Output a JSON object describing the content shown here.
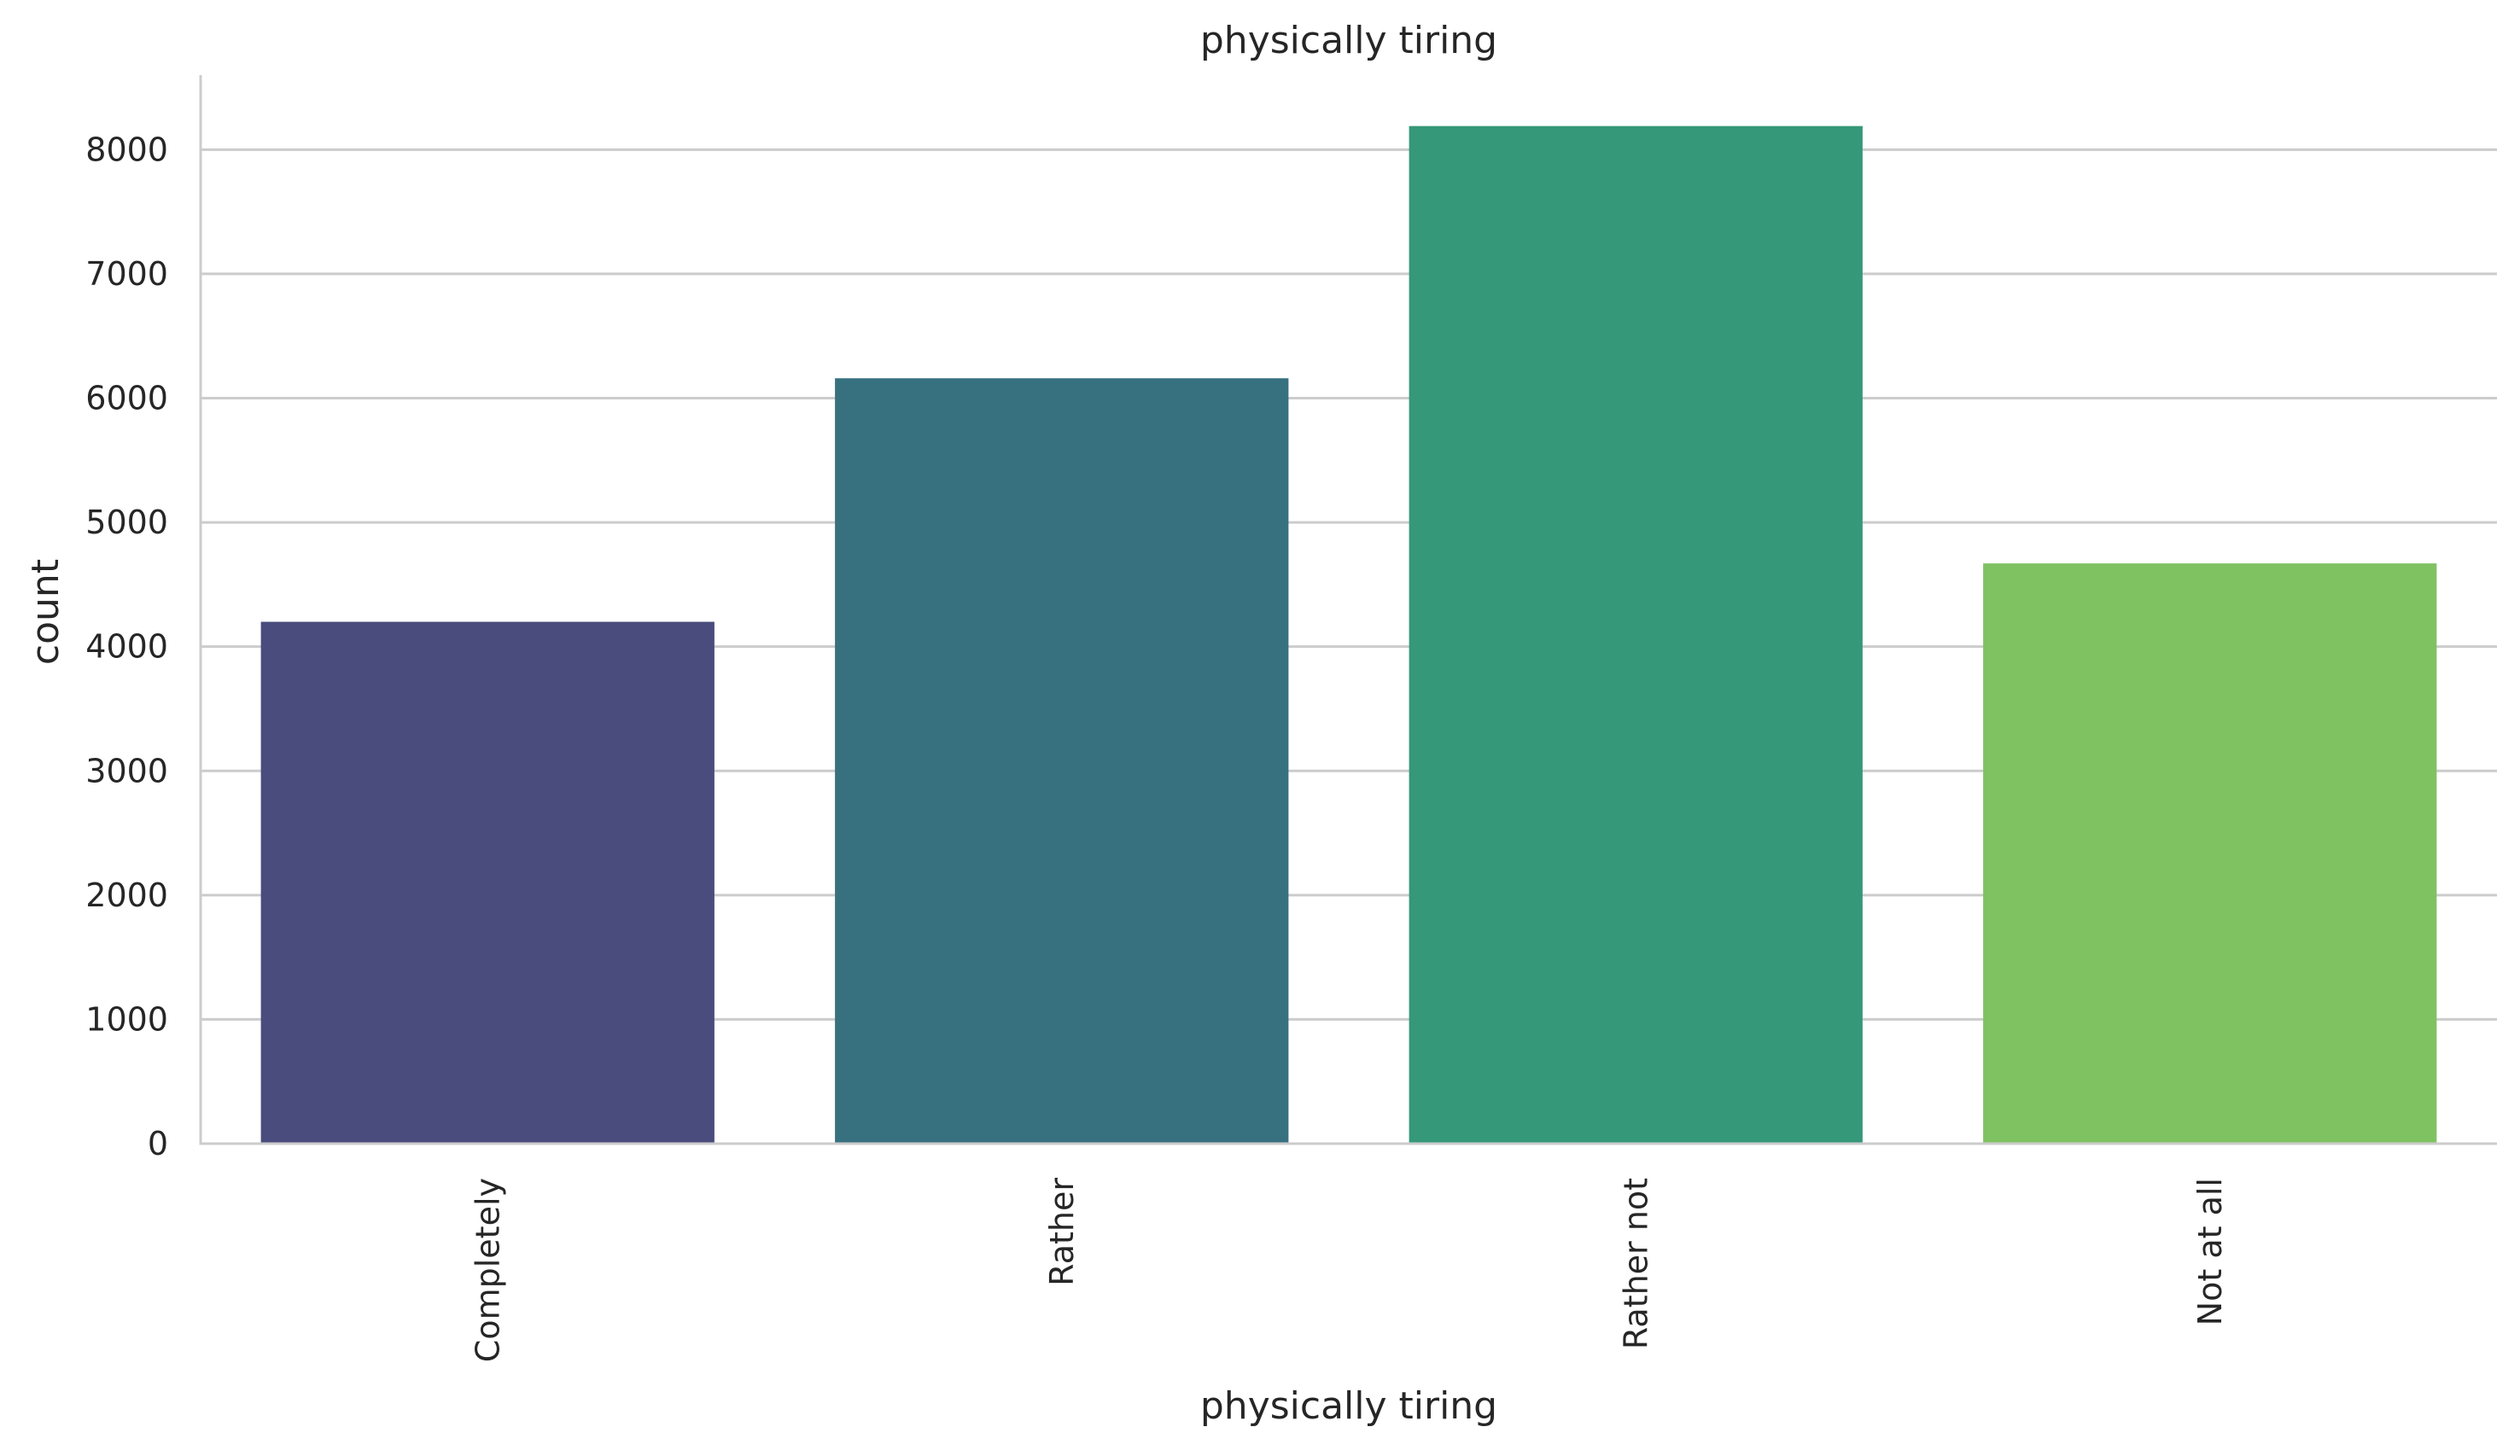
{
  "chart_data": {
    "type": "bar",
    "title": "physically tiring",
    "xlabel": "physically tiring",
    "ylabel": "count",
    "categories": [
      "Completely",
      "Rather",
      "Rather not",
      "Not at all"
    ],
    "values": [
      4200,
      6160,
      8190,
      4670
    ],
    "colors": [
      "#4a4c7d",
      "#377180",
      "#359879",
      "#7fc262"
    ],
    "ylim": [
      0,
      8600
    ],
    "yticks": [
      "0",
      "1000",
      "2000",
      "3000",
      "4000",
      "5000",
      "6000",
      "7000",
      "8000"
    ],
    "grid": true,
    "gridColor": "#cccccc",
    "legend": "none"
  }
}
